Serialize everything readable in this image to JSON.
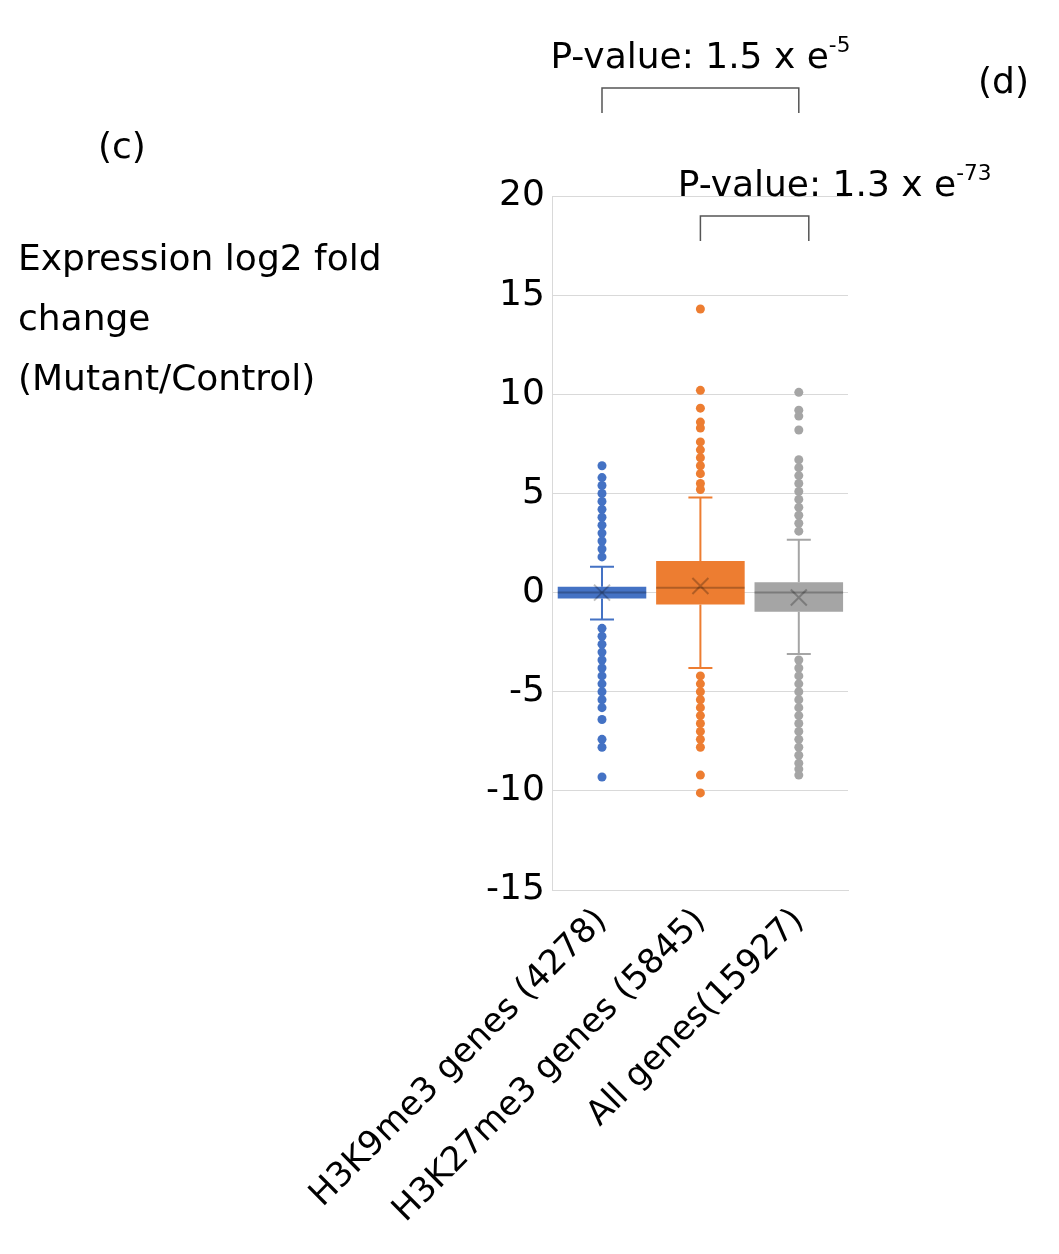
{
  "chart_data": {
    "type": "box",
    "title": "(c)",
    "ylabel": "Expression log2 fold change (Mutant/Control)",
    "categories": [
      "H3K9me3 genes (4278)",
      "H3K27me3 genes (5845)",
      "All genes(15927)"
    ],
    "colors": [
      "#4472c4",
      "#ed7d31",
      "#a5a5a5"
    ],
    "boxes": [
      {
        "low": -1.35,
        "q1": -0.3,
        "median": 0,
        "q3": 0.3,
        "high": 1.3,
        "mean": 0,
        "outliers": [
          6.4,
          5.8,
          5.4,
          5,
          4.6,
          4.2,
          3.8,
          3.4,
          3,
          2.6,
          2.2,
          1.8,
          -1.8,
          -2.2,
          -2.6,
          -3,
          -3.4,
          -3.8,
          -4.2,
          -4.6,
          -5,
          -5.4,
          -5.8,
          -6.4,
          -7.4,
          -7.8,
          -9.3
        ]
      },
      {
        "low": -3.8,
        "q1": -0.6,
        "median": 0.25,
        "q3": 1.6,
        "high": 4.8,
        "mean": 0.33,
        "outliers": [
          14.3,
          10.2,
          9.3,
          8.6,
          8.3,
          7.6,
          7.2,
          6.8,
          6.4,
          6,
          5.5,
          5.2,
          -4.2,
          -4.6,
          -5,
          -5.4,
          -5.8,
          -6.2,
          -6.6,
          -7,
          -7.4,
          -7.8,
          -9.2,
          -10.1
        ]
      },
      {
        "low": -3.1,
        "q1": -0.97,
        "median": 0,
        "q3": 0.52,
        "high": 2.66,
        "mean": -0.25,
        "outliers": [
          10.1,
          9.2,
          8.9,
          8.2,
          6.7,
          6.3,
          5.9,
          5.5,
          5.1,
          4.7,
          4.3,
          3.9,
          3.5,
          3.1,
          -3.4,
          -3.8,
          -4.2,
          -4.6,
          -5,
          -5.4,
          -5.8,
          -6.2,
          -6.6,
          -7,
          -7.4,
          -7.8,
          -8.2,
          -8.6,
          -8.9,
          -9.2
        ]
      }
    ],
    "ylim": [
      -15,
      20
    ],
    "yticks": [
      -15,
      -10,
      -5,
      0,
      5,
      10,
      15,
      20
    ],
    "grid": "y",
    "legend": false,
    "annotations": [
      "P-value: 1.5 x e$^{-5}$",
      "P-value: 1.3 x e$^{-73}$",
      "(d)"
    ]
  }
}
